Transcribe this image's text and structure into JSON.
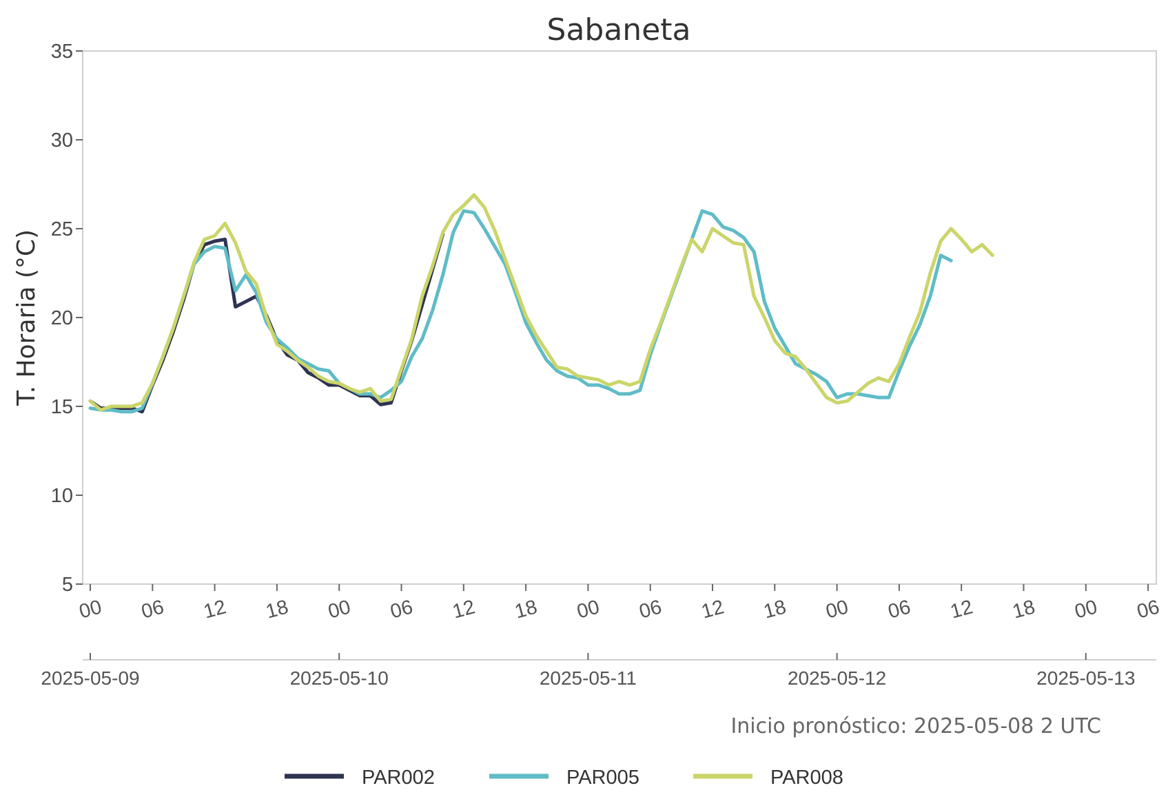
{
  "chart_data": {
    "type": "line",
    "title": "Sabaneta",
    "ylabel": "T. Horaria (°C)",
    "xlabel": "",
    "ylim": [
      5,
      35
    ],
    "yticks": [
      5,
      10,
      15,
      20,
      25,
      30,
      35
    ],
    "x_unit": "hours from 2025-05-09 00 UTC",
    "xlim": [
      0,
      102
    ],
    "hour_ticks": [
      "00",
      "06",
      "12",
      "18",
      "00",
      "06",
      "12",
      "18",
      "00",
      "06",
      "12",
      "18",
      "00",
      "06",
      "12",
      "18",
      "00",
      "06"
    ],
    "date_ticks": [
      "2025-05-09",
      "2025-05-10",
      "2025-05-11",
      "2025-05-12",
      "2025-05-13"
    ],
    "grid": false,
    "legend_position": "bottom-center",
    "annotation": "Inicio pronóstico: 2025-05-08 2 UTC",
    "series": [
      {
        "name": "PAR002",
        "color": "#2f3352",
        "x_start": 0,
        "values": [
          15.3,
          14.9,
          14.9,
          14.9,
          14.9,
          14.7,
          16.2,
          17.6,
          19.2,
          21.0,
          23.0,
          24.1,
          24.3,
          24.4,
          20.6,
          20.9,
          21.2,
          20.1,
          18.7,
          17.9,
          17.6,
          16.9,
          16.6,
          16.2,
          16.2,
          15.9,
          15.6,
          15.6,
          15.1,
          15.2,
          17.0,
          18.7,
          20.7,
          22.7,
          24.7
        ]
      },
      {
        "name": "PAR005",
        "color": "#5fbcc7",
        "x_start": 0,
        "values": [
          14.9,
          14.8,
          14.8,
          14.7,
          14.7,
          14.9,
          16.3,
          17.8,
          19.4,
          21.2,
          23.0,
          23.7,
          24.0,
          23.9,
          21.5,
          22.4,
          21.4,
          19.7,
          18.8,
          18.3,
          17.7,
          17.4,
          17.1,
          17.0,
          16.3,
          16.0,
          15.7,
          15.7,
          15.5,
          15.9,
          16.4,
          17.8,
          18.8,
          20.4,
          22.4,
          24.8,
          26.0,
          25.9,
          25.0,
          24.0,
          23.0,
          21.4,
          19.7,
          18.6,
          17.6,
          17.0,
          16.7,
          16.6,
          16.2,
          16.2,
          16.0,
          15.7,
          15.7,
          15.9,
          17.9,
          19.6,
          21.2,
          22.8,
          24.4,
          26.0,
          25.8,
          25.1,
          24.9,
          24.5,
          23.7,
          20.9,
          19.4,
          18.4,
          17.4,
          17.1,
          16.8,
          16.4,
          15.5,
          15.7,
          15.7,
          15.6,
          15.5,
          15.5,
          17.0,
          18.4,
          19.6,
          21.2,
          23.5,
          23.2
        ]
      },
      {
        "name": "PAR008",
        "color": "#cbd56a",
        "x_start": 0,
        "values": [
          15.3,
          14.8,
          15.0,
          15.0,
          15.0,
          15.2,
          16.3,
          17.8,
          19.4,
          21.2,
          23.1,
          24.4,
          24.6,
          25.3,
          24.2,
          22.6,
          21.9,
          20.0,
          18.5,
          18.1,
          17.6,
          17.2,
          16.7,
          16.4,
          16.3,
          16.0,
          15.8,
          16.0,
          15.3,
          15.4,
          17.1,
          18.8,
          21.2,
          22.9,
          24.8,
          25.8,
          26.3,
          26.9,
          26.2,
          24.9,
          23.3,
          21.7,
          20.1,
          19.0,
          18.1,
          17.2,
          17.1,
          16.7,
          16.6,
          16.5,
          16.2,
          16.4,
          16.2,
          16.4,
          18.2,
          19.7,
          21.3,
          22.9,
          24.4,
          23.7,
          25.0,
          24.6,
          24.2,
          24.1,
          21.2,
          20.0,
          18.7,
          18.0,
          17.8,
          17.1,
          16.3,
          15.5,
          15.2,
          15.3,
          15.8,
          16.3,
          16.6,
          16.4,
          17.4,
          18.9,
          20.3,
          22.5,
          24.3,
          25.0,
          24.4,
          23.7,
          24.1,
          23.5
        ]
      }
    ]
  }
}
